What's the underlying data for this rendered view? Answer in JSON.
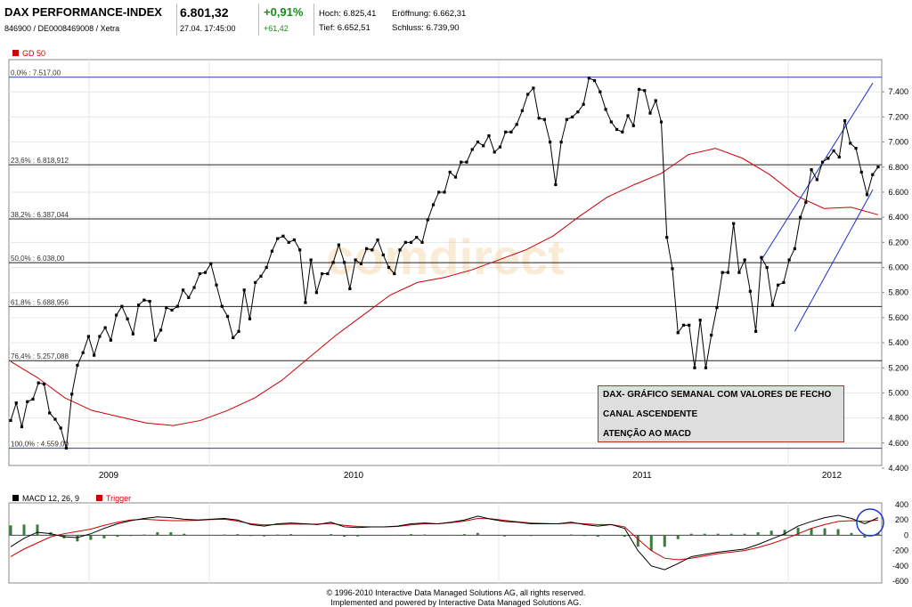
{
  "header": {
    "name": "DAX PERFORMANCE-INDEX",
    "ids": "846900 / DE0008469008 / Xetra",
    "price": "6.801,32",
    "datetime": "27.04. 17:45:00",
    "change_pct": "+0,91%",
    "change_abs": "+61,42",
    "hoch": "Hoch: 6.825,41",
    "tief": "Tief: 6.652,51",
    "eroeffnung": "Eröffnung: 6.662,31",
    "schluss": "Schluss: 6.739,90"
  },
  "watermark": "comdirect",
  "annotation": {
    "lines": [
      "DAX- GRÁFICO SEMANAL COM VALORES DE FECHO",
      "CANAL ASCENDENTE",
      "ATENÇÃO AO MACD"
    ]
  },
  "footer": {
    "line1": "© 1996-2010 Interactive Data Managed Solutions AG, all rights reserved.",
    "line2": "Implemented and powered by Interactive Data Managed Solutions AG."
  },
  "colors": {
    "price": "#000000",
    "gd50": "#cc0000",
    "channel": "#1f2fd0",
    "fib": "#222222",
    "hist": "#3d7a3d",
    "trigger": "#cc0000"
  },
  "chart_data": [
    {
      "type": "line",
      "title": "DAX PERFORMANCE-INDEX",
      "legend": [
        {
          "name": "GD 50",
          "color": "#cc0000"
        }
      ],
      "x_tick_labels": [
        "2009",
        "2010",
        "2011",
        "2012"
      ],
      "ylim": [
        4400,
        7600
      ],
      "y_ticks": [
        4400,
        4600,
        4800,
        5000,
        5200,
        5400,
        5600,
        5800,
        6000,
        6200,
        6400,
        6600,
        6800,
        7000,
        7200,
        7400
      ],
      "y_tick_labels": [
        "4.400",
        "4.600",
        "4.800",
        "5.000",
        "5.200",
        "5.400",
        "5.600",
        "5.800",
        "6.000",
        "6.200",
        "6.400",
        "6.600",
        "6.800",
        "7.000",
        "7.200",
        "7.400"
      ],
      "fib_levels": [
        {
          "value": 7517,
          "label": "0,0% : 7.517,00"
        },
        {
          "value": 6818.912,
          "label": "23,6% : 6.818,912"
        },
        {
          "value": 6387.044,
          "label": "38,2% : 6.387,044"
        },
        {
          "value": 6038,
          "label": "50,0% : 6.038,00"
        },
        {
          "value": 5688.956,
          "label": "61,8% : 5.688,956"
        },
        {
          "value": 5257.088,
          "label": "76,4% : 5.257,088"
        },
        {
          "value": 4559,
          "label": "100,0% : 4.559,00"
        }
      ],
      "series": [
        {
          "name": "DAX",
          "values": [
            4780,
            4920,
            4730,
            4930,
            4950,
            5080,
            5070,
            4840,
            4790,
            4720,
            4560,
            4990,
            5220,
            5320,
            5450,
            5300,
            5450,
            5520,
            5420,
            5620,
            5690,
            5590,
            5470,
            5700,
            5740,
            5730,
            5420,
            5500,
            5680,
            5660,
            5690,
            5820,
            5760,
            5840,
            5950,
            5960,
            6030,
            5860,
            5690,
            5610,
            5440,
            5490,
            5820,
            5590,
            5880,
            5930,
            6000,
            6130,
            6230,
            6250,
            6200,
            6220,
            6140,
            5720,
            6060,
            5800,
            5950,
            5950,
            6040,
            6180,
            6040,
            5830,
            6060,
            6030,
            6150,
            6140,
            6220,
            6100,
            6000,
            5950,
            6140,
            6200,
            6200,
            6240,
            6200,
            6380,
            6500,
            6600,
            6600,
            6760,
            6720,
            6840,
            6840,
            6940,
            7000,
            6970,
            7050,
            6920,
            6960,
            7080,
            7080,
            7140,
            7250,
            7380,
            7430,
            7190,
            7180,
            7000,
            6660,
            7000,
            7180,
            7200,
            7240,
            7300,
            7510,
            7490,
            7400,
            7260,
            7160,
            7100,
            7080,
            7210,
            7130,
            7420,
            7410,
            7230,
            7330,
            7160,
            6240,
            5990,
            5480,
            5540,
            5540,
            5200,
            5580,
            5200,
            5460,
            5680,
            5960,
            5960,
            6350,
            5960,
            6060,
            5810,
            5490,
            6080,
            6000,
            5700,
            5860,
            5880,
            6060,
            6150,
            6400,
            6520,
            6780,
            6700,
            6840,
            6870,
            6930,
            6880,
            7170,
            6990,
            6950,
            6760,
            6580,
            6740,
            6801.32
          ]
        },
        {
          "name": "GD 50",
          "values": [
            5250,
            5120,
            4960,
            4860,
            4810,
            4760,
            4740,
            4780,
            4860,
            4960,
            5100,
            5280,
            5460,
            5620,
            5780,
            5880,
            5920,
            5980,
            6060,
            6140,
            6250,
            6410,
            6560,
            6660,
            6750,
            6900,
            6950,
            6870,
            6740,
            6570,
            6470,
            6480,
            6420
          ]
        }
      ],
      "channel": {
        "lower": [
          [
            5490,
            6620
          ]
        ],
        "upper": [
          [
            6060,
            7470
          ]
        ]
      }
    },
    {
      "type": "line",
      "title": "MACD 12, 26, 9",
      "legend": [
        {
          "name": "MACD 12, 26, 9",
          "color": "#000000"
        },
        {
          "name": "Trigger",
          "color": "#cc0000"
        }
      ],
      "ylim": [
        -600,
        400
      ],
      "y_ticks": [
        400,
        200,
        0,
        -200,
        -400,
        -600
      ],
      "y_tick_labels": [
        "400",
        "200",
        "0",
        "-200",
        "-400",
        "-600"
      ],
      "series": [
        {
          "name": "MACD 12, 26, 9",
          "values": [
            -150,
            -40,
            40,
            20,
            -20,
            -30,
            20,
            90,
            150,
            190,
            220,
            240,
            230,
            210,
            200,
            210,
            220,
            200,
            140,
            120,
            150,
            160,
            150,
            140,
            170,
            110,
            100,
            110,
            110,
            120,
            150,
            160,
            150,
            170,
            200,
            250,
            210,
            180,
            170,
            150,
            150,
            150,
            170,
            140,
            120,
            140,
            90,
            -200,
            -400,
            -450,
            -370,
            -280,
            -250,
            -220,
            -200,
            -180,
            -120,
            -50,
            20,
            120,
            180,
            230,
            260,
            220,
            150,
            230
          ]
        },
        {
          "name": "Trigger",
          "values": [
            -280,
            -180,
            -100,
            -20,
            20,
            50,
            80,
            130,
            170,
            200,
            210,
            200,
            190,
            190,
            195,
            205,
            210,
            185,
            150,
            135,
            140,
            145,
            145,
            145,
            155,
            130,
            115,
            110,
            110,
            115,
            135,
            150,
            150,
            165,
            185,
            220,
            215,
            195,
            175,
            160,
            155,
            150,
            160,
            150,
            140,
            140,
            110,
            -50,
            -200,
            -300,
            -320,
            -300,
            -270,
            -240,
            -220,
            -200,
            -160,
            -110,
            -50,
            20,
            90,
            140,
            180,
            190,
            180,
            200
          ]
        },
        {
          "name": "Histogram",
          "values": [
            130,
            140,
            140,
            40,
            -40,
            -80,
            -60,
            -40,
            -20,
            -10,
            10,
            40,
            40,
            20,
            5,
            5,
            10,
            15,
            -10,
            -15,
            10,
            15,
            5,
            -5,
            15,
            -20,
            -15,
            0,
            0,
            5,
            15,
            10,
            0,
            5,
            15,
            30,
            -5,
            -15,
            -5,
            -10,
            -5,
            0,
            10,
            -10,
            -20,
            0,
            -20,
            -150,
            -200,
            -150,
            -50,
            20,
            20,
            20,
            20,
            20,
            40,
            60,
            70,
            100,
            90,
            90,
            80,
            30,
            -30,
            30
          ]
        }
      ]
    }
  ]
}
